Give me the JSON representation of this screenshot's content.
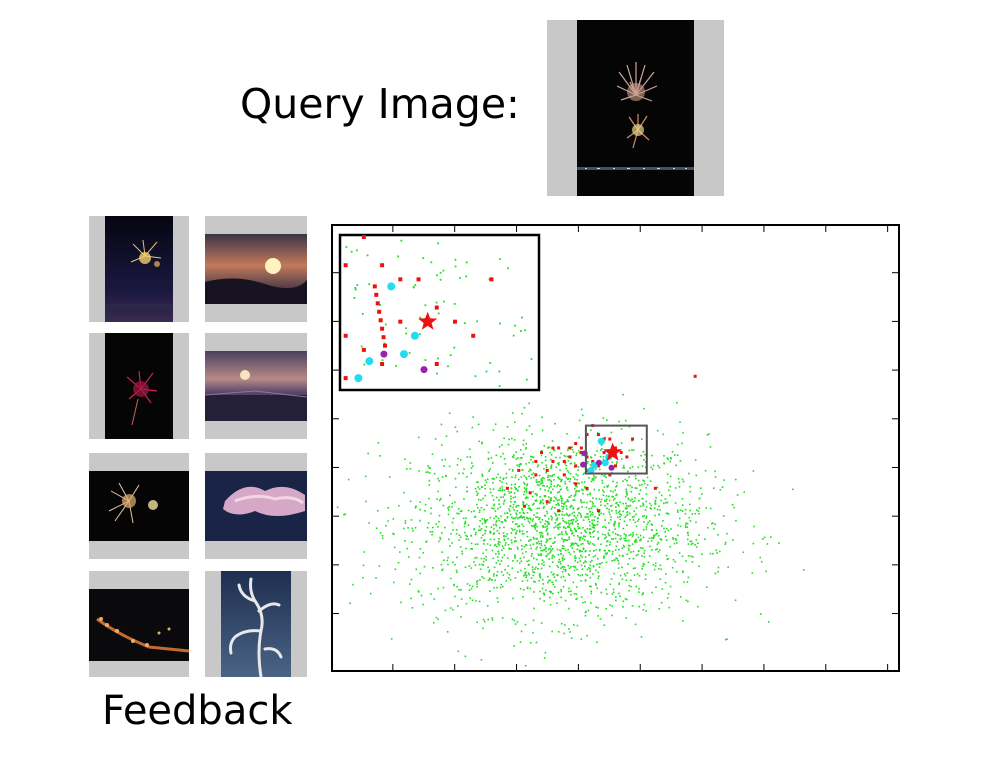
{
  "header": {
    "query_label": "Query Image:"
  },
  "footer": {
    "feedback_label": "Feedback"
  },
  "query_image": {
    "subject": "fireworks-night-sky"
  },
  "feedback_images": [
    {
      "subject": "fireworks-over-harbor",
      "orientation": "portrait"
    },
    {
      "subject": "sunset-clouds",
      "orientation": "landscape"
    },
    {
      "subject": "red-firework-burst",
      "orientation": "portrait"
    },
    {
      "subject": "sunset-over-water",
      "orientation": "landscape"
    },
    {
      "subject": "fireworks-pair",
      "orientation": "landscape"
    },
    {
      "subject": "pink-clouds-night",
      "orientation": "landscape"
    },
    {
      "subject": "city-lights-night",
      "orientation": "landscape"
    },
    {
      "subject": "bare-tree-blue-sky",
      "orientation": "portrait"
    }
  ],
  "scatter_plot": {
    "type": "scatter",
    "x_range": [
      0,
      100
    ],
    "y_range": [
      0,
      100
    ],
    "background_cloud": {
      "color": "#22dd22",
      "count": 2200,
      "center": [
        40,
        33
      ],
      "spread": [
        13,
        10
      ]
    },
    "colors": {
      "red": "#ee1111",
      "cyan": "#22ddee",
      "purple": "#9922aa",
      "star": "#ee1111",
      "zoom_box": "#555555"
    },
    "red_points": [
      [
        37,
        49
      ],
      [
        39,
        50
      ],
      [
        40,
        50
      ],
      [
        42,
        50
      ],
      [
        43,
        51
      ],
      [
        44,
        50
      ],
      [
        45,
        48
      ],
      [
        46,
        47
      ],
      [
        41,
        47
      ],
      [
        43,
        46
      ],
      [
        45,
        45
      ],
      [
        47,
        46
      ],
      [
        48,
        49
      ],
      [
        50,
        50
      ],
      [
        49,
        52
      ],
      [
        51,
        49
      ],
      [
        52,
        48
      ],
      [
        36,
        44
      ],
      [
        38,
        45
      ],
      [
        35,
        40
      ],
      [
        34,
        37
      ],
      [
        38,
        38
      ],
      [
        40,
        36
      ],
      [
        47,
        36
      ],
      [
        43,
        42
      ],
      [
        45,
        41
      ],
      [
        33,
        45
      ],
      [
        31,
        41
      ],
      [
        57,
        41
      ],
      [
        64,
        66
      ],
      [
        45,
        53
      ],
      [
        47,
        53
      ],
      [
        46,
        55
      ],
      [
        48,
        52
      ],
      [
        44,
        49
      ],
      [
        42,
        48
      ],
      [
        39,
        47
      ],
      [
        41,
        44
      ],
      [
        36,
        47
      ],
      [
        50,
        46
      ],
      [
        53,
        52
      ],
      [
        49,
        44
      ]
    ],
    "cyan_points": [
      [
        47.5,
        51.5
      ],
      [
        45.7,
        45
      ],
      [
        46.3,
        46.2
      ],
      [
        48.2,
        46.7
      ],
      [
        48.8,
        48
      ]
    ],
    "purple_points": [
      [
        44.3,
        46.3
      ],
      [
        44.6,
        48.8
      ],
      [
        49.3,
        45.6
      ],
      [
        47.1,
        46.7
      ]
    ],
    "query_star": [
      49.5,
      49
    ],
    "zoom_box": {
      "x": [
        44.8,
        55.5
      ],
      "y": [
        44.3,
        55
      ]
    }
  }
}
